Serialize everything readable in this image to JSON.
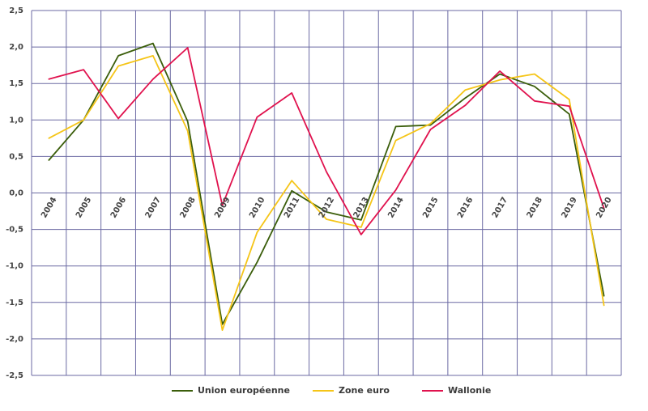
{
  "chart_data": {
    "type": "line",
    "title": "",
    "xlabel": "",
    "ylabel": "",
    "categories": [
      "2004",
      "2005",
      "2006",
      "2007",
      "2008",
      "2009",
      "2010",
      "2011",
      "2012",
      "2013",
      "2014",
      "2015",
      "2016",
      "2017",
      "2018",
      "2019",
      "2020"
    ],
    "ylim": [
      -2.5,
      2.5
    ],
    "y_ticks": [
      "2,5",
      "2,0",
      "1,5",
      "1,0",
      "0,5",
      "0,0",
      "-0,5",
      "-1,0",
      "-1,5",
      "-2,0",
      "-2,5"
    ],
    "y_tick_values": [
      2.5,
      2.0,
      1.5,
      1.0,
      0.5,
      0.0,
      -0.5,
      -1.0,
      -1.5,
      -2.0,
      -2.5
    ],
    "grid": true,
    "legend_position": "bottom",
    "series": [
      {
        "name": "Union européenne",
        "color": "#3b5e0b",
        "values": [
          0.45,
          1.0,
          1.88,
          2.05,
          0.98,
          -1.8,
          -0.95,
          0.03,
          -0.26,
          -0.37,
          0.91,
          0.93,
          1.3,
          1.63,
          1.46,
          1.08,
          -1.41
        ]
      },
      {
        "name": "Zone euro",
        "color": "#f5c518",
        "values": [
          0.75,
          1.0,
          1.74,
          1.88,
          0.85,
          -1.88,
          -0.54,
          0.17,
          -0.36,
          -0.47,
          0.72,
          0.95,
          1.41,
          1.55,
          1.63,
          1.28,
          -1.54
        ]
      },
      {
        "name": "Wallonie",
        "color": "#e0124e",
        "values": [
          1.56,
          1.69,
          1.02,
          1.56,
          1.99,
          -0.17,
          1.04,
          1.37,
          0.29,
          -0.57,
          0.04,
          0.87,
          1.2,
          1.67,
          1.26,
          1.19,
          -0.21
        ]
      }
    ]
  }
}
